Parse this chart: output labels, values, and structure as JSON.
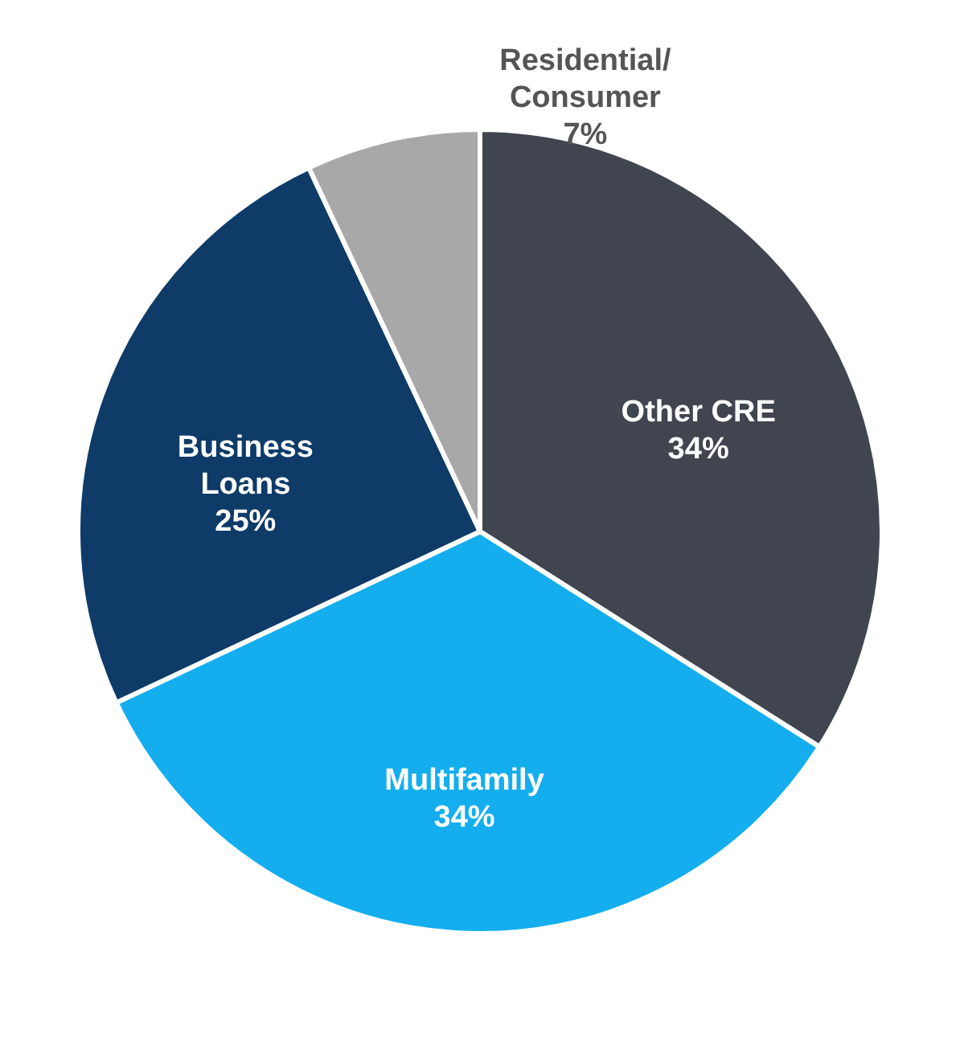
{
  "chart_data": {
    "type": "pie",
    "categories": [
      "Other CRE",
      "Multifamily",
      "Business\nLoans",
      "Residential/\nConsumer"
    ],
    "values": [
      34,
      34,
      25,
      7
    ],
    "colors": [
      "#40454f",
      "#14aeee",
      "#0e3b68",
      "#a8a8a8"
    ],
    "value_labels": [
      "34%",
      "34%",
      "25%",
      "7%"
    ],
    "legend": false
  }
}
